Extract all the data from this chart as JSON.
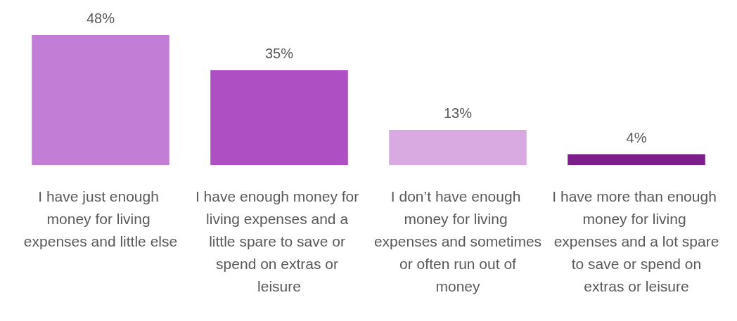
{
  "chart_data": {
    "type": "bar",
    "categories": [
      "I have just enough money for living expenses and little else",
      "I have enough money for living expenses and a little spare to save or spend on extras or leisure",
      "I don’t have enough money for living expenses and sometimes or often run out of money",
      "I have more than enough money for living expenses and a lot spare to save or spend on extras or leisure"
    ],
    "values": [
      48,
      35,
      13,
      4
    ],
    "value_labels": [
      "48%",
      "35%",
      "13%",
      "4%"
    ],
    "colors": [
      "#c27ed6",
      "#ae4fc4",
      "#d9a9e1",
      "#7b1e8a"
    ]
  }
}
